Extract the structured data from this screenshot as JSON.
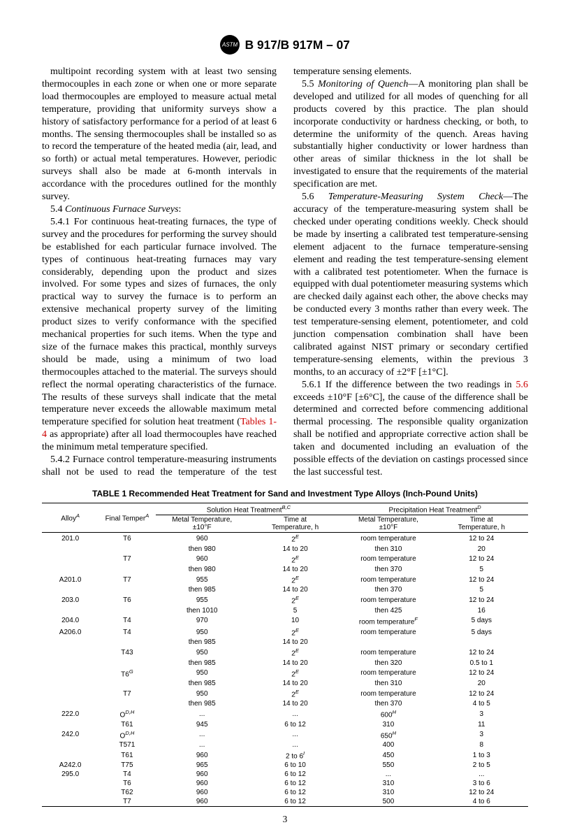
{
  "doc_title": "B 917/B 917M – 07",
  "page_number": "3",
  "col1": {
    "p1": "multipoint recording system with at least two sensing thermocouples in each zone or when one or more separate load thermocouples are employed to measure actual metal temperature, providing that uniformity surveys show a history of satisfactory performance for a period of at least 6 months. The sensing thermocouples shall be installed so as to record the temperature of the heated media (air, lead, and so forth) or actual metal temperatures. However, periodic surveys shall also be made at 6-month intervals in accordance with the procedures outlined for the monthly survey.",
    "p2_lead": "5.4 ",
    "p2_title": "Continuous Furnace Surveys",
    "p3": "5.4.1 For continuous heat-treating furnaces, the type of survey and the procedures for performing the survey should be established for each particular furnace involved. The types of continuous heat-treating furnaces may vary considerably, depending upon the product and sizes involved. For some types and sizes of furnaces, the only practical way to survey the furnace is to perform an extensive mechanical property survey of the limiting product sizes to verify conformance with the specified mechanical properties for such items. When the type and size of the furnace makes this practical, monthly surveys should be made, using a minimum of two load thermocouples attached to the material. The surveys should reflect the normal operating characteristics of the furnace. The results of these surveys shall indicate that the metal temperature never exceeds the allowable maximum metal temperature specified for solution heat treatment (",
    "p3_ref": "Tables 1-4",
    "p3_tail": " as appropriate) after all load thermocouples have reached the minimum metal temperature specified.",
    "p4": "5.4.2 Furnace control temperature-measuring instruments shall not be used to read the temperature of the test temperature sensing elements."
  },
  "col2": {
    "p5_lead": "5.5 ",
    "p5_title": "Monitoring of Quench",
    "p5": "—A monitoring plan shall be developed and utilized for all modes of quenching for all products covered by this practice. The plan should incorporate conductivity or hardness checking, or both, to determine the uniformity of the quench. Areas having substantially higher conductivity or lower hardness than other areas of similar thickness in the lot shall be investigated to ensure that the requirements of the material specification are met.",
    "p6_lead": "5.6 ",
    "p6_title": "Temperature-Measuring System Check",
    "p6": "—The accuracy of the temperature-measuring system shall be checked under operating conditions weekly. Check should be made by inserting a calibrated test temperature-sensing element adjacent to the furnace temperature-sensing element and reading the test temperature-sensing element with a calibrated test potentiometer. When the furnace is equipped with dual potentiometer measuring systems which are checked daily against each other, the above checks may be conducted every 3 months rather than every week. The test temperature-sensing element, potentiometer, and cold junction compensation combination shall have been calibrated against NIST primary or secondary certified temperature-sensing elements, within the previous 3 months, to an accuracy of ±2°F [±1°C].",
    "p7_a": "5.6.1 If the difference between the two readings in ",
    "p7_ref": "5.6",
    "p7_b": " exceeds ±10°F [±6°C], the cause of the difference shall be determined and corrected before commencing additional thermal processing. The responsible quality organization shall be notified and appropriate corrective action shall be taken and documented including an evaluation of the possible effects of the deviation on castings processed since the last successful test."
  },
  "table": {
    "title": "TABLE 1  Recommended Heat Treatment for Sand and Investment Type Alloys (Inch-Pound Units)",
    "h_alloy": "Alloy",
    "h_temper": "Final Temper",
    "h_sol": "Solution Heat Treatment",
    "h_prec": "Precipitation Heat Treatment",
    "h_mt": "Metal Temperature,\n±10°F",
    "h_tat": "Time at\nTemperature, h",
    "sup_A": "A",
    "sup_BC": "B,C",
    "sup_D": "D",
    "rows": [
      [
        "201.0",
        "T6",
        "960",
        "2",
        "room temperature",
        "12 to 24",
        "E",
        "",
        ""
      ],
      [
        "",
        "",
        "then 980",
        "14 to 20",
        "then 310",
        "20",
        "",
        "",
        ""
      ],
      [
        "",
        "T7",
        "960",
        "2",
        "room temperature",
        "12 to 24",
        "E",
        "",
        ""
      ],
      [
        "",
        "",
        "then 980",
        "14 to 20",
        "then 370",
        "5",
        "",
        "",
        ""
      ],
      [
        "A201.0",
        "T7",
        "955",
        "2",
        "room temperature",
        "12 to 24",
        "E",
        "",
        ""
      ],
      [
        "",
        "",
        "then 985",
        "14 to 20",
        "then 370",
        "5",
        "",
        "",
        ""
      ],
      [
        "203.0",
        "T6",
        "955",
        "2",
        "room temperature",
        "12 to 24",
        "E",
        "",
        ""
      ],
      [
        "",
        "",
        "then 1010",
        "5",
        "then 425",
        "16",
        "",
        "",
        ""
      ],
      [
        "204.0",
        "T4",
        "970",
        "10",
        "room temperature",
        "5 days",
        "",
        "",
        "F"
      ],
      [
        "A206.0",
        "T4",
        "950",
        "2",
        "room temperature",
        "5 days",
        "E",
        "",
        ""
      ],
      [
        "",
        "",
        "then 985",
        "14 to 20",
        "",
        "",
        "",
        "",
        ""
      ],
      [
        "",
        "T43",
        "950",
        "2",
        "room temperature",
        "12 to 24",
        "E",
        "",
        ""
      ],
      [
        "",
        "",
        "then 985",
        "14 to 20",
        "then 320",
        "0.5 to 1",
        "",
        "",
        ""
      ],
      [
        "",
        "T6",
        "950",
        "2",
        "room temperature",
        "12 to 24",
        "E",
        "G",
        ""
      ],
      [
        "",
        "",
        "then 985",
        "14 to 20",
        "then 310",
        "20",
        "",
        "",
        ""
      ],
      [
        "",
        "T7",
        "950",
        "2",
        "room temperature",
        "12 to 24",
        "E",
        "",
        ""
      ],
      [
        "",
        "",
        "then 985",
        "14 to 20",
        "then 370",
        "4 to 5",
        "",
        "",
        ""
      ],
      [
        "222.0",
        "O",
        "...",
        "...",
        "600",
        "3",
        "",
        "D,H",
        "H"
      ],
      [
        "",
        "T61",
        "945",
        "6 to 12",
        "310",
        "11",
        "",
        "",
        ""
      ],
      [
        "242.0",
        "O",
        "...",
        "...",
        "650",
        "3",
        "",
        "D,H",
        "H"
      ],
      [
        "",
        "T571",
        "...",
        "...",
        "400",
        "8",
        "",
        "",
        ""
      ],
      [
        "",
        "T61",
        "960",
        "2 to 6",
        "450",
        "1 to 3",
        "I",
        "",
        ""
      ],
      [
        "A242.0",
        "T75",
        "965",
        "6 to 10",
        "550",
        "2 to 5",
        "",
        "",
        ""
      ],
      [
        "295.0",
        "T4",
        "960",
        "6 to 12",
        "...",
        "...",
        "",
        "",
        ""
      ],
      [
        "",
        "T6",
        "960",
        "6 to 12",
        "310",
        "3 to 6",
        "",
        "",
        ""
      ],
      [
        "",
        "T62",
        "960",
        "6 to 12",
        "310",
        "12 to 24",
        "",
        "",
        ""
      ],
      [
        "",
        "T7",
        "960",
        "6 to 12",
        "500",
        "4 to 6",
        "",
        "",
        ""
      ]
    ]
  }
}
